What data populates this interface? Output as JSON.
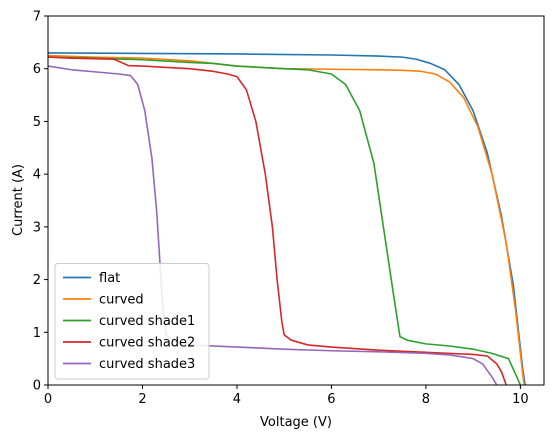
{
  "chart_data": {
    "type": "line",
    "title": "",
    "xlabel": "Voltage (V)",
    "ylabel": "Current (A)",
    "xlim": [
      0,
      10.5
    ],
    "ylim": [
      0,
      7
    ],
    "xticks": [
      0,
      2,
      4,
      6,
      8,
      10
    ],
    "yticks": [
      0,
      1,
      2,
      3,
      4,
      5,
      6,
      7
    ],
    "grid": false,
    "legend_position": "lower-left",
    "series": [
      {
        "name": "flat",
        "color": "#1f77b4",
        "points": [
          [
            0,
            6.3
          ],
          [
            2,
            6.29
          ],
          [
            4,
            6.28
          ],
          [
            6,
            6.26
          ],
          [
            7,
            6.24
          ],
          [
            7.5,
            6.22
          ],
          [
            7.8,
            6.18
          ],
          [
            8.1,
            6.1
          ],
          [
            8.4,
            5.98
          ],
          [
            8.7,
            5.7
          ],
          [
            9.0,
            5.2
          ],
          [
            9.3,
            4.4
          ],
          [
            9.6,
            3.2
          ],
          [
            9.85,
            1.9
          ],
          [
            10.05,
            0.3
          ],
          [
            10.1,
            0
          ]
        ]
      },
      {
        "name": "curved",
        "color": "#ff7f0e",
        "points": [
          [
            0,
            6.25
          ],
          [
            1,
            6.22
          ],
          [
            2,
            6.2
          ],
          [
            3,
            6.15
          ],
          [
            4,
            6.05
          ],
          [
            5,
            6.0
          ],
          [
            6,
            5.99
          ],
          [
            7,
            5.98
          ],
          [
            7.5,
            5.97
          ],
          [
            7.9,
            5.95
          ],
          [
            8.2,
            5.9
          ],
          [
            8.5,
            5.75
          ],
          [
            8.8,
            5.45
          ],
          [
            9.1,
            4.9
          ],
          [
            9.4,
            4.0
          ],
          [
            9.7,
            2.7
          ],
          [
            9.9,
            1.4
          ],
          [
            10.05,
            0.2
          ],
          [
            10.08,
            0
          ]
        ]
      },
      {
        "name": "curved shade1",
        "color": "#2ca02c",
        "points": [
          [
            0,
            6.22
          ],
          [
            1,
            6.2
          ],
          [
            2,
            6.17
          ],
          [
            3,
            6.12
          ],
          [
            3.5,
            6.1
          ],
          [
            4,
            6.05
          ],
          [
            5,
            6.0
          ],
          [
            5.5,
            5.98
          ],
          [
            6,
            5.9
          ],
          [
            6.3,
            5.7
          ],
          [
            6.6,
            5.2
          ],
          [
            6.9,
            4.2
          ],
          [
            7.1,
            3.0
          ],
          [
            7.3,
            1.8
          ],
          [
            7.45,
            0.92
          ],
          [
            7.6,
            0.85
          ],
          [
            8,
            0.78
          ],
          [
            8.5,
            0.74
          ],
          [
            9,
            0.68
          ],
          [
            9.4,
            0.6
          ],
          [
            9.75,
            0.5
          ],
          [
            9.95,
            0.1
          ],
          [
            10.0,
            0
          ]
        ]
      },
      {
        "name": "curved shade2",
        "color": "#d62728",
        "points": [
          [
            0,
            6.22
          ],
          [
            0.5,
            6.2
          ],
          [
            1.4,
            6.18
          ],
          [
            1.7,
            6.06
          ],
          [
            2,
            6.05
          ],
          [
            3,
            6.0
          ],
          [
            3.5,
            5.95
          ],
          [
            3.8,
            5.9
          ],
          [
            4.0,
            5.85
          ],
          [
            4.2,
            5.6
          ],
          [
            4.4,
            5.0
          ],
          [
            4.6,
            4.0
          ],
          [
            4.75,
            3.0
          ],
          [
            4.85,
            2.0
          ],
          [
            4.95,
            1.2
          ],
          [
            5.0,
            0.95
          ],
          [
            5.15,
            0.85
          ],
          [
            5.5,
            0.76
          ],
          [
            6,
            0.72
          ],
          [
            7,
            0.66
          ],
          [
            8,
            0.62
          ],
          [
            8.5,
            0.6
          ],
          [
            9,
            0.58
          ],
          [
            9.3,
            0.55
          ],
          [
            9.5,
            0.4
          ],
          [
            9.6,
            0.25
          ],
          [
            9.7,
            0
          ]
        ]
      },
      {
        "name": "curved shade3",
        "color": "#9467bd",
        "points": [
          [
            0,
            6.05
          ],
          [
            0.5,
            5.98
          ],
          [
            1,
            5.94
          ],
          [
            1.5,
            5.9
          ],
          [
            1.75,
            5.87
          ],
          [
            1.9,
            5.7
          ],
          [
            2.05,
            5.2
          ],
          [
            2.2,
            4.3
          ],
          [
            2.3,
            3.3
          ],
          [
            2.35,
            2.6
          ],
          [
            2.42,
            1.6
          ],
          [
            2.5,
            0.95
          ],
          [
            2.7,
            0.82
          ],
          [
            3,
            0.76
          ],
          [
            4,
            0.72
          ],
          [
            5,
            0.68
          ],
          [
            6,
            0.65
          ],
          [
            7,
            0.63
          ],
          [
            8,
            0.6
          ],
          [
            8.5,
            0.57
          ],
          [
            8.8,
            0.53
          ],
          [
            9.0,
            0.5
          ],
          [
            9.2,
            0.4
          ],
          [
            9.4,
            0.15
          ],
          [
            9.5,
            0
          ]
        ]
      }
    ]
  }
}
